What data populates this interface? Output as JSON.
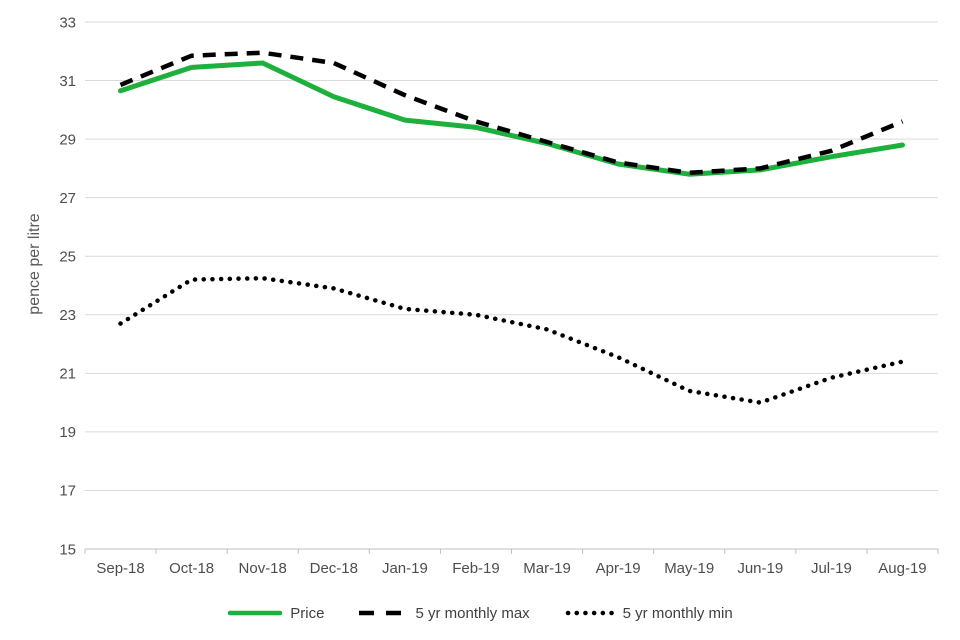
{
  "chart_data": {
    "type": "line",
    "title": "",
    "xlabel": "",
    "ylabel": "pence per litre",
    "ylim": [
      15,
      33
    ],
    "yticks": [
      15,
      17,
      19,
      21,
      23,
      25,
      27,
      29,
      31,
      33
    ],
    "grid": true,
    "legend_position": "bottom",
    "categories": [
      "Sep-18",
      "Oct-18",
      "Nov-18",
      "Dec-18",
      "Jan-19",
      "Feb-19",
      "Mar-19",
      "Apr-19",
      "May-19",
      "Jun-19",
      "Jul-19",
      "Aug-19"
    ],
    "series": [
      {
        "name": "Price",
        "style": "solid",
        "color": "#1db03c",
        "values": [
          30.65,
          31.45,
          31.6,
          30.45,
          29.65,
          29.4,
          28.85,
          28.15,
          27.8,
          27.95,
          28.4,
          28.8
        ]
      },
      {
        "name": "5 yr monthly max",
        "style": "dashed",
        "color": "#000000",
        "values": [
          30.85,
          31.85,
          31.95,
          31.6,
          30.5,
          29.6,
          28.9,
          28.2,
          27.85,
          28.0,
          28.6,
          29.6
        ]
      },
      {
        "name": "5 yr monthly min",
        "style": "dotted",
        "color": "#000000",
        "values": [
          22.7,
          24.2,
          24.25,
          23.9,
          23.2,
          23.0,
          22.5,
          21.55,
          20.4,
          20.0,
          20.85,
          21.4
        ]
      }
    ],
    "colors": {
      "gridline": "#d9d9d9",
      "axis_line": "#bfbfbf",
      "tick_text": "#4d4d4d",
      "axis_title_text": "#595959"
    }
  }
}
